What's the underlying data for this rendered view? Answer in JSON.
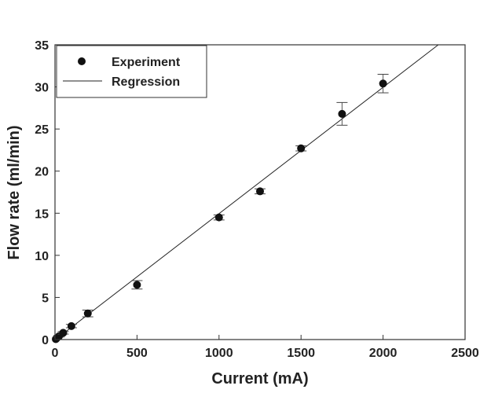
{
  "chart_data": {
    "type": "scatter",
    "title": "",
    "xlabel": "Current (mA)",
    "ylabel": "Flow rate (ml/min)",
    "xlim": [
      0,
      2500
    ],
    "ylim": [
      0,
      35
    ],
    "xticks": [
      "0",
      "500",
      "1000",
      "1500",
      "2000",
      "2500"
    ],
    "yticks": [
      "0",
      "5",
      "10",
      "15",
      "20",
      "25",
      "30",
      "35"
    ],
    "grid": false,
    "legend_position": "top-left",
    "series": [
      {
        "name": "Experiment",
        "kind": "points-with-error-bars",
        "x": [
          5,
          10,
          25,
          50,
          100,
          200,
          500,
          1000,
          1250,
          1500,
          1750,
          2000
        ],
        "y": [
          0.05,
          0.15,
          0.4,
          0.8,
          1.6,
          3.1,
          6.5,
          14.5,
          17.6,
          22.7,
          26.8,
          30.4
        ],
        "error": [
          0.05,
          0.05,
          0.1,
          0.15,
          0.2,
          0.4,
          0.5,
          0.3,
          0.3,
          0.3,
          1.35,
          1.1
        ]
      },
      {
        "name": "Regression",
        "kind": "line",
        "slope": 0.015,
        "intercept": -0.05
      }
    ]
  }
}
